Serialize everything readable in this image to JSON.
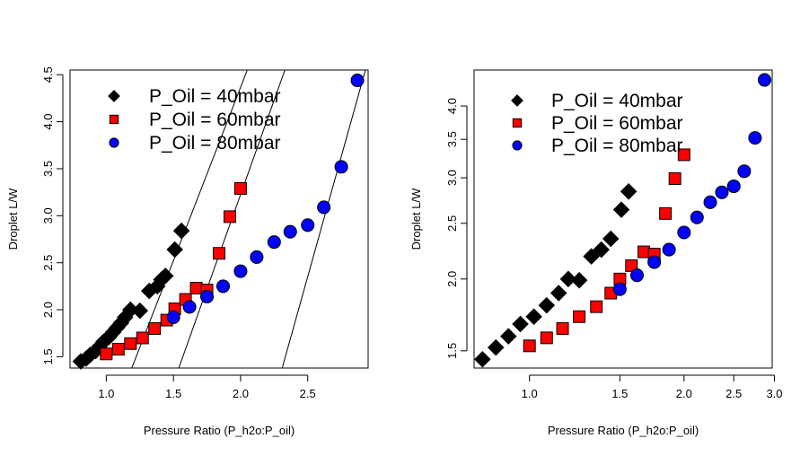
{
  "chart_data": [
    {
      "type": "scatter",
      "panel": "left",
      "title": "",
      "xlabel": "Pressure Ratio (P_h2o:P_oil)",
      "ylabel": "Droplet L/W",
      "xscale": "linear",
      "yscale": "linear",
      "xlim": [
        0.73,
        2.95
      ],
      "ylim": [
        1.38,
        4.55
      ],
      "xticks": [
        1.0,
        1.5,
        2.0,
        2.5
      ],
      "xtick_labels": [
        "1.0",
        "1.5",
        "2.0",
        "2.5"
      ],
      "yticks": [
        1.5,
        2.0,
        2.5,
        3.0,
        3.5,
        4.0,
        4.5
      ],
      "ytick_labels": [
        "1.5",
        "2.0",
        "2.5",
        "3.0",
        "3.5",
        "4.0",
        "4.5"
      ],
      "legend_position": "top-left",
      "series": [
        {
          "name": "P_Oil = 40mbar",
          "marker": "diamond",
          "color": "#000000",
          "x": [
            0.81,
            0.85,
            0.88,
            0.92,
            0.95,
            0.98,
            1.02,
            1.05,
            1.08,
            1.11,
            1.14,
            1.18,
            1.25,
            1.32,
            1.38,
            1.41,
            1.44,
            1.51,
            1.56
          ],
          "y": [
            1.45,
            1.48,
            1.52,
            1.56,
            1.61,
            1.66,
            1.71,
            1.76,
            1.81,
            1.86,
            1.92,
            2.0,
            1.99,
            2.2,
            2.25,
            2.32,
            2.36,
            2.64,
            2.84
          ]
        },
        {
          "name": "P_Oil = 60mbar",
          "marker": "square",
          "color": "#ff0000",
          "x": [
            1.0,
            1.09,
            1.18,
            1.27,
            1.36,
            1.45,
            1.51,
            1.59,
            1.67,
            1.75,
            1.84,
            1.92,
            2.0
          ],
          "y": [
            1.53,
            1.58,
            1.64,
            1.7,
            1.8,
            1.89,
            2.01,
            2.11,
            2.23,
            2.21,
            2.6,
            2.99,
            3.29
          ]
        },
        {
          "name": "P_Oil = 80mbar",
          "marker": "circle",
          "color": "#0000ff",
          "x": [
            1.5,
            1.62,
            1.75,
            1.87,
            2.0,
            2.12,
            2.25,
            2.37,
            2.5,
            2.62,
            2.75,
            2.87
          ],
          "y": [
            1.92,
            2.03,
            2.14,
            2.25,
            2.41,
            2.56,
            2.72,
            2.83,
            2.9,
            3.09,
            3.52,
            4.44
          ]
        }
      ],
      "fit_lines": [
        {
          "x": [
            1.19,
            2.05
          ],
          "y": [
            1.38,
            4.55
          ]
        },
        {
          "x": [
            1.54,
            2.33
          ],
          "y": [
            1.38,
            4.55
          ]
        },
        {
          "x": [
            2.31,
            2.93
          ],
          "y": [
            1.38,
            4.55
          ]
        }
      ]
    },
    {
      "type": "scatter",
      "panel": "right",
      "title": "",
      "xlabel": "Pressure Ratio (P_h2o:P_oil)",
      "ylabel": "Droplet L/W",
      "xscale": "log",
      "yscale": "log",
      "xlim": [
        0.78,
        2.97
      ],
      "ylim": [
        1.4,
        4.62
      ],
      "xticks": [
        1.0,
        1.5,
        2.0,
        2.5,
        3.0
      ],
      "xtick_labels": [
        "1.0",
        "1.5",
        "2.0",
        "2.5",
        "3.0"
      ],
      "yticks": [
        1.5,
        2.0,
        2.5,
        3.0,
        3.5,
        4.0
      ],
      "ytick_labels": [
        "1.5",
        "2.0",
        "2.5",
        "3.0",
        "3.5",
        "4.0"
      ],
      "legend_position": "top-left",
      "series": [
        {
          "name": "P_Oil = 40mbar",
          "marker": "diamond",
          "color": "#000000",
          "x": [
            0.81,
            0.86,
            0.91,
            0.96,
            1.02,
            1.08,
            1.14,
            1.19,
            1.25,
            1.32,
            1.38,
            1.44,
            1.51,
            1.56
          ],
          "y": [
            1.45,
            1.52,
            1.59,
            1.67,
            1.72,
            1.8,
            1.89,
            2.0,
            1.99,
            2.19,
            2.25,
            2.35,
            2.64,
            2.84
          ]
        },
        {
          "name": "P_Oil = 60mbar",
          "marker": "square",
          "color": "#ff0000",
          "x": [
            1.0,
            1.08,
            1.16,
            1.25,
            1.35,
            1.44,
            1.5,
            1.58,
            1.67,
            1.75,
            1.84,
            1.92,
            2.0
          ],
          "y": [
            1.53,
            1.58,
            1.64,
            1.72,
            1.79,
            1.89,
            2.0,
            2.11,
            2.23,
            2.21,
            2.6,
            2.99,
            3.29
          ]
        },
        {
          "name": "P_Oil = 80mbar",
          "marker": "circle",
          "color": "#0000ff",
          "x": [
            1.5,
            1.62,
            1.75,
            1.87,
            2.0,
            2.12,
            2.25,
            2.37,
            2.5,
            2.62,
            2.75,
            2.87
          ],
          "y": [
            1.92,
            2.03,
            2.14,
            2.25,
            2.41,
            2.56,
            2.72,
            2.83,
            2.9,
            3.08,
            3.52,
            4.44
          ]
        }
      ],
      "fit_lines": []
    }
  ]
}
